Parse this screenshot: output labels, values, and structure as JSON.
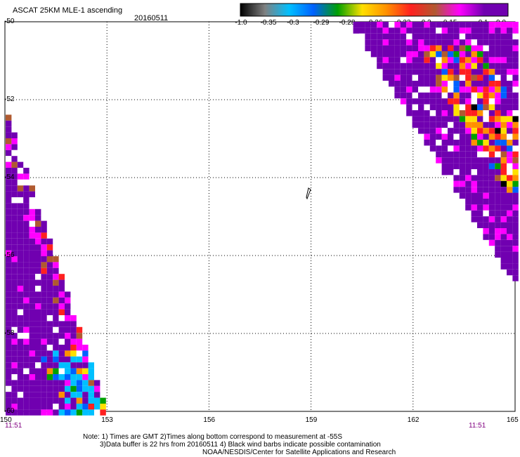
{
  "header": {
    "title": "ASCAT 25KM MLE-1 ascending",
    "date": "20160511"
  },
  "colorbar": {
    "labels": [
      "-1.0",
      "-0.35",
      "-0.3",
      "-0.29",
      "-0.28",
      "-0.26",
      "-0.23",
      "-0.2",
      "-0.15",
      "-0.1",
      "0.0"
    ],
    "colors": [
      "#000000",
      "#808080",
      "#00c0ff",
      "#0060ff",
      "#00a000",
      "#ffe000",
      "#ff9000",
      "#ff2020",
      "#b05a30",
      "#ff00ff",
      "#7000b0"
    ]
  },
  "map": {
    "lon_labels": [
      "150",
      "153",
      "156",
      "159",
      "162",
      "165"
    ],
    "lat_labels": [
      "-50",
      "-52",
      "-54",
      "-56",
      "-58",
      "-60"
    ],
    "lon_range": [
      150,
      165
    ],
    "lat_range": [
      -60,
      -50
    ]
  },
  "times": {
    "left": "11:51",
    "right": "11:51"
  },
  "notes": {
    "line1": "Note: 1) Times are GMT 2)Times along bottom correspond to measurement at -55S",
    "line2": "3)Data buffer is 22 hrs from 20160511 4) Black wind barbs indicate possible contamination",
    "line3": "NOAA/NESDIS/Center for Satellite Applications and Research"
  }
}
